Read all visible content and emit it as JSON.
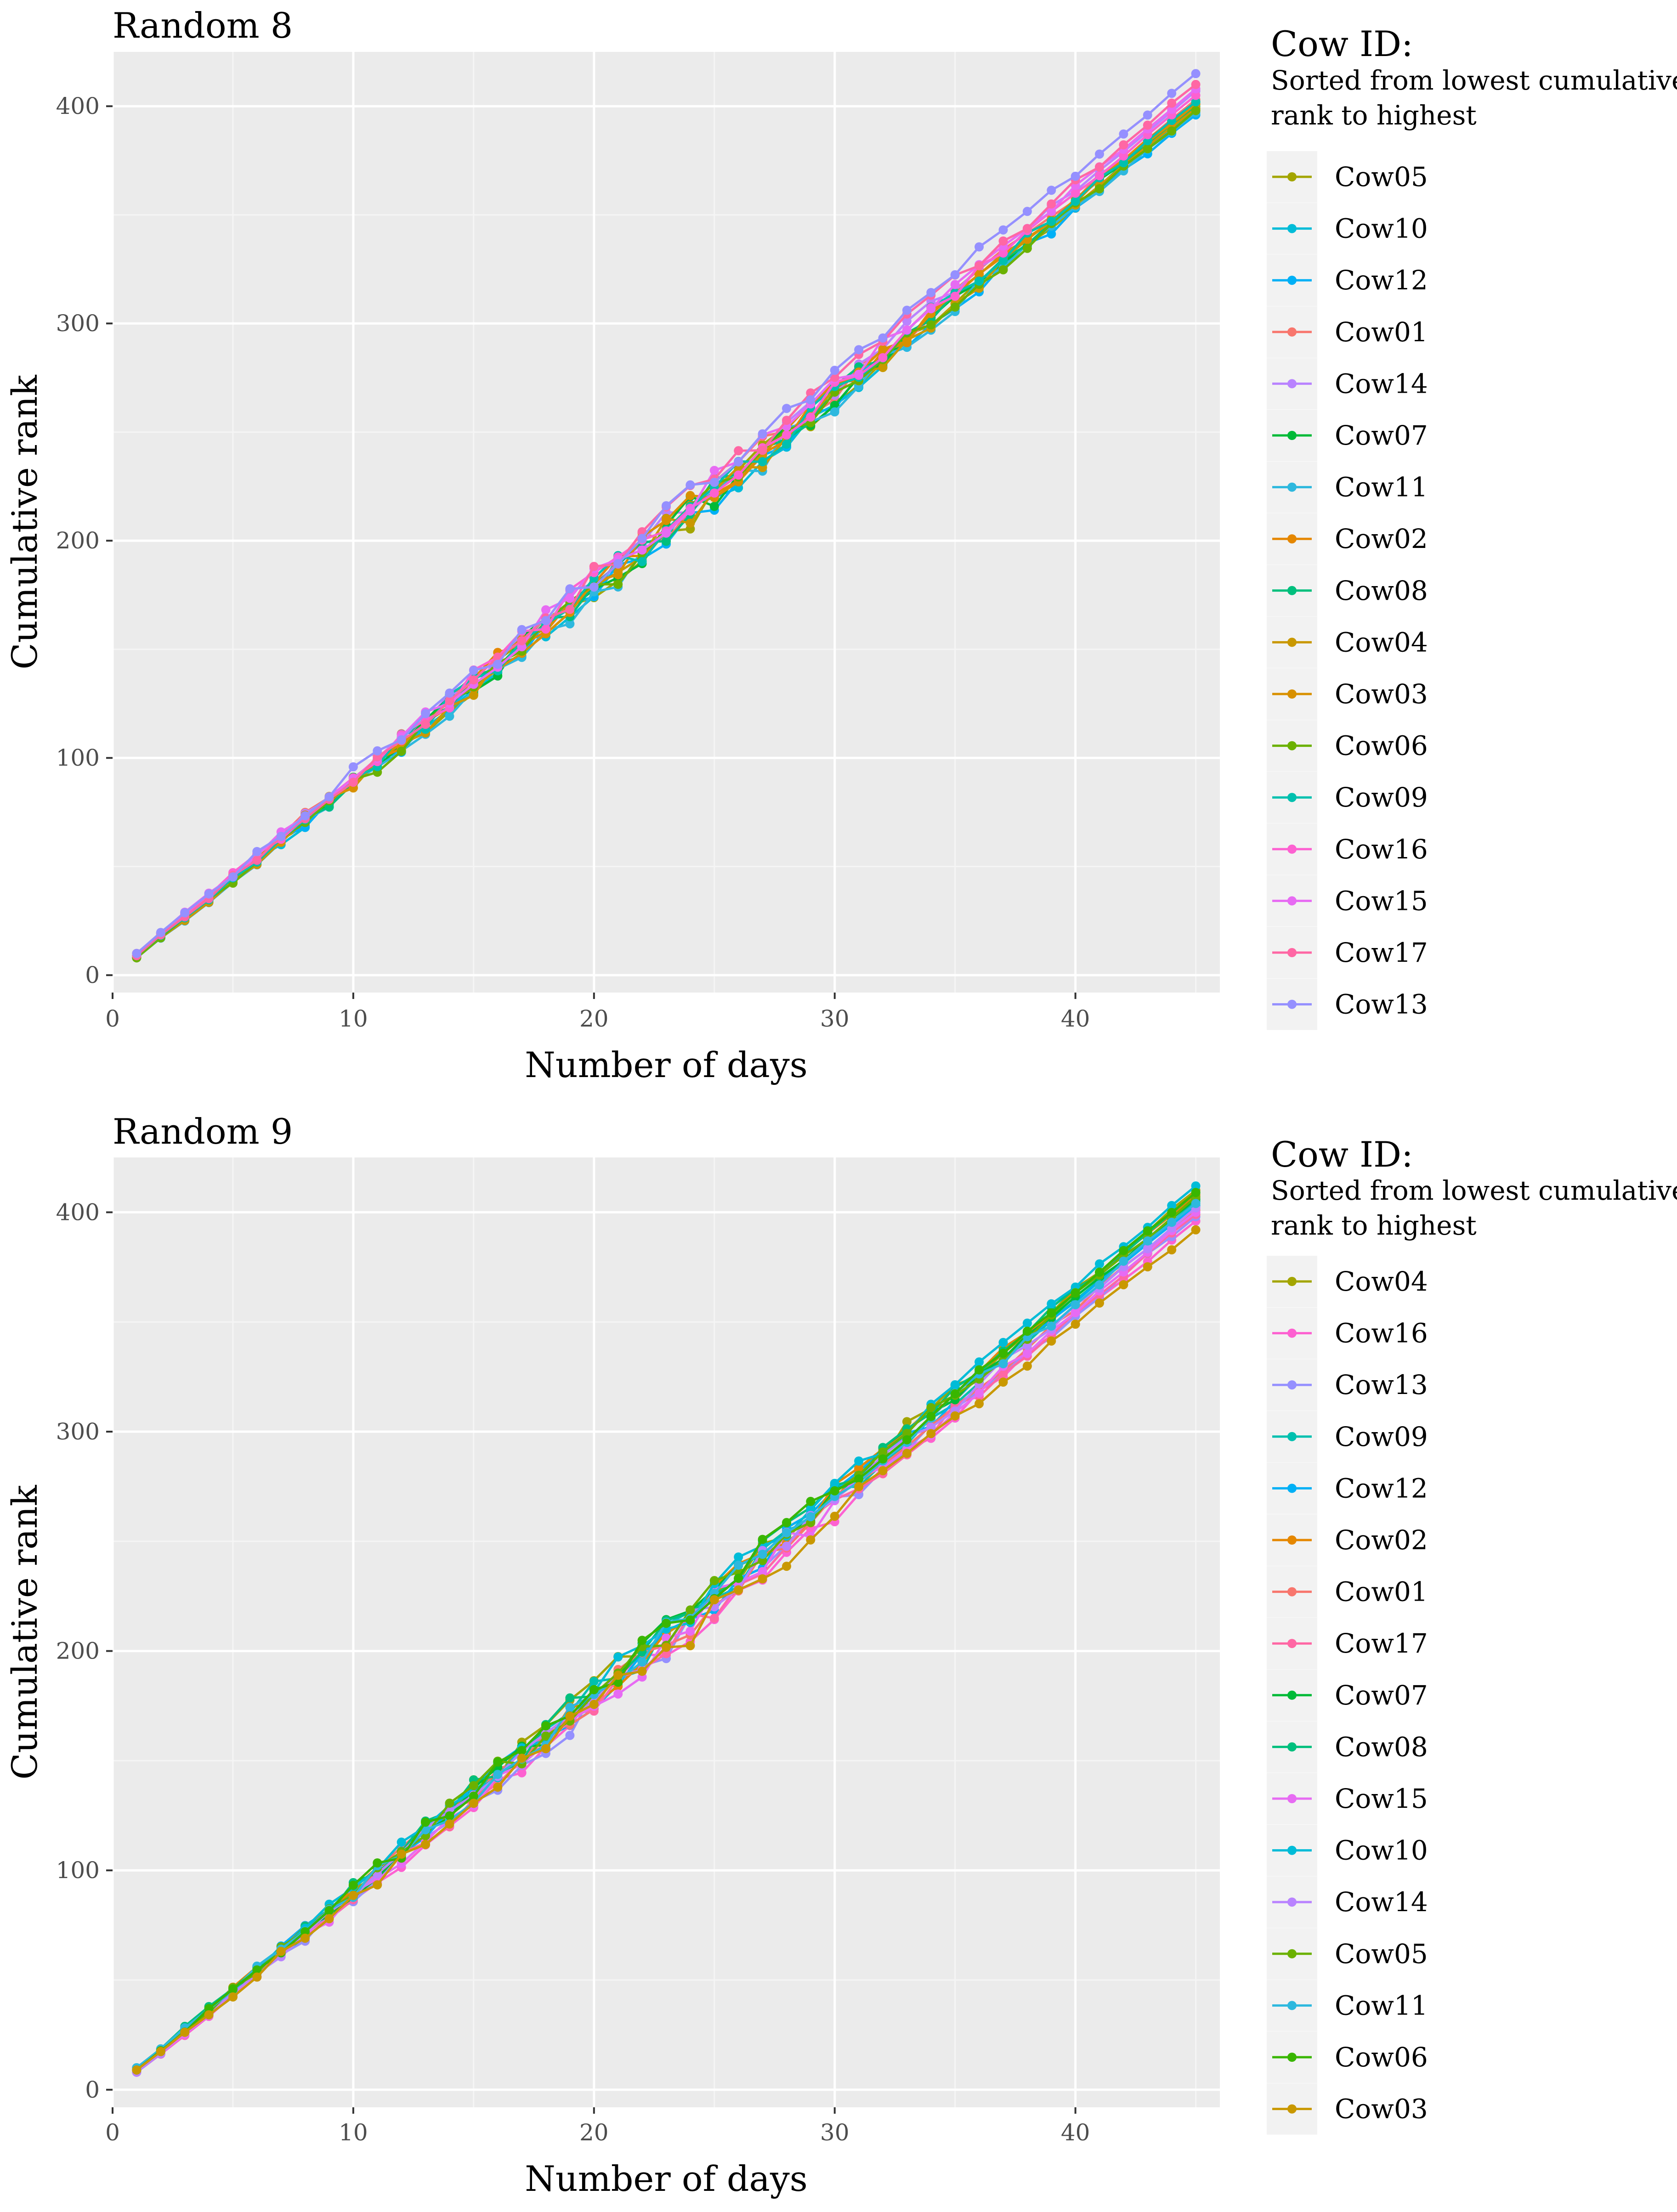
{
  "charts": [
    {
      "title": "Random 8",
      "xlabel": "Number of days",
      "ylabel": "Cumulative rank",
      "legend_title": "Cow ID:",
      "legend_subtitle_line1": "Sorted from lowest cumulative",
      "legend_subtitle_line2": "rank to highest",
      "legend_order": [
        "Cow05",
        "Cow10",
        "Cow12",
        "Cow01",
        "Cow14",
        "Cow07",
        "Cow11",
        "Cow02",
        "Cow08",
        "Cow04",
        "Cow03",
        "Cow06",
        "Cow09",
        "Cow16",
        "Cow15",
        "Cow17",
        "Cow13"
      ],
      "x_ticks": [
        "0",
        "10",
        "20",
        "30",
        "40"
      ],
      "y_ticks": [
        "0",
        "100",
        "200",
        "300",
        "400"
      ]
    },
    {
      "title": "Random 9",
      "xlabel": "Number of days",
      "ylabel": "Cumulative rank",
      "legend_title": "Cow ID:",
      "legend_subtitle_line1": "Sorted from lowest cumulative",
      "legend_subtitle_line2": "rank to highest",
      "legend_order": [
        "Cow04",
        "Cow16",
        "Cow13",
        "Cow09",
        "Cow12",
        "Cow02",
        "Cow01",
        "Cow17",
        "Cow07",
        "Cow08",
        "Cow15",
        "Cow10",
        "Cow14",
        "Cow05",
        "Cow11",
        "Cow06",
        "Cow03"
      ],
      "x_ticks": [
        "0",
        "10",
        "20",
        "30",
        "40"
      ],
      "y_ticks": [
        "0",
        "100",
        "200",
        "300",
        "400"
      ]
    }
  ],
  "colors": {
    "Cow01": "#F8766D",
    "Cow02": "#E58700",
    "Cow03": "#C99800",
    "Cow04": "#A3A500",
    "Cow05": "#6BB100",
    "Cow06": "#00BA38",
    "Cow07": "#00BF7D",
    "Cow08": "#00C0AF",
    "Cow09": "#00BCD8",
    "Cow10": "#00B0F6",
    "Cow11": "#619CFF",
    "Cow12": "#B983FF",
    "Cow13": "#E76BF3",
    "Cow14": "#FD61D1",
    "Cow15": "#FF67A4",
    "Cow16": "#2EB8DE",
    "Cow17": "#9FA0FF",
    "panel_bg": "#EBEBEB",
    "grid_major": "#FFFFFF",
    "legend_key_bg": "#F2F2F2"
  },
  "chart_data": [
    {
      "type": "line",
      "title": "Random 8",
      "xlabel": "Number of days",
      "ylabel": "Cumulative rank",
      "xlim": [
        0,
        46
      ],
      "ylim": [
        -8,
        425
      ],
      "grid": true,
      "legend_position": "right",
      "x_days": [
        1,
        45
      ],
      "series": [
        {
          "name": "Cow05",
          "color": "#A3A500",
          "y1": 9,
          "y45": 398
        },
        {
          "name": "Cow10",
          "color": "#00BCD8",
          "y1": 8,
          "y45": 399
        },
        {
          "name": "Cow12",
          "color": "#00B0F6",
          "y1": 9,
          "y45": 396
        },
        {
          "name": "Cow01",
          "color": "#F8766D",
          "y1": 10,
          "y45": 403
        },
        {
          "name": "Cow14",
          "color": "#B983FF",
          "y1": 9,
          "y45": 407
        },
        {
          "name": "Cow07",
          "color": "#00BA38",
          "y1": 8,
          "y45": 401
        },
        {
          "name": "Cow11",
          "color": "#2EB8DE",
          "y1": 8,
          "y45": 397
        },
        {
          "name": "Cow02",
          "color": "#E58700",
          "y1": 10,
          "y45": 402
        },
        {
          "name": "Cow08",
          "color": "#00BF7D",
          "y1": 9,
          "y45": 400
        },
        {
          "name": "Cow04",
          "color": "#C99800",
          "y1": 8,
          "y45": 399
        },
        {
          "name": "Cow03",
          "color": "#D89000",
          "y1": 9,
          "y45": 401
        },
        {
          "name": "Cow06",
          "color": "#6BB100",
          "y1": 8,
          "y45": 398
        },
        {
          "name": "Cow09",
          "color": "#00C0AF",
          "y1": 9,
          "y45": 402
        },
        {
          "name": "Cow16",
          "color": "#FD61D1",
          "y1": 10,
          "y45": 405
        },
        {
          "name": "Cow15",
          "color": "#E76BF3",
          "y1": 10,
          "y45": 408
        },
        {
          "name": "Cow17",
          "color": "#FF67A4",
          "y1": 9,
          "y45": 410
        },
        {
          "name": "Cow13",
          "color": "#9590FF",
          "y1": 10,
          "y45": 415
        }
      ]
    },
    {
      "type": "line",
      "title": "Random 9",
      "xlabel": "Number of days",
      "ylabel": "Cumulative rank",
      "xlim": [
        0,
        46
      ],
      "ylim": [
        -8,
        425
      ],
      "grid": true,
      "legend_position": "right",
      "x_days": [
        1,
        45
      ],
      "series": [
        {
          "name": "Cow04",
          "color": "#A3A500",
          "y1": 9,
          "y45": 410
        },
        {
          "name": "Cow16",
          "color": "#FD61D1",
          "y1": 8,
          "y45": 396
        },
        {
          "name": "Cow13",
          "color": "#9590FF",
          "y1": 8,
          "y45": 398
        },
        {
          "name": "Cow09",
          "color": "#00C0AF",
          "y1": 9,
          "y45": 405
        },
        {
          "name": "Cow12",
          "color": "#00B0F6",
          "y1": 10,
          "y45": 403
        },
        {
          "name": "Cow02",
          "color": "#E58700",
          "y1": 9,
          "y45": 408
        },
        {
          "name": "Cow01",
          "color": "#F8766D",
          "y1": 9,
          "y45": 401
        },
        {
          "name": "Cow17",
          "color": "#FF67A4",
          "y1": 8,
          "y45": 399
        },
        {
          "name": "Cow07",
          "color": "#00BA38",
          "y1": 9,
          "y45": 406
        },
        {
          "name": "Cow08",
          "color": "#00BF7D",
          "y1": 10,
          "y45": 409
        },
        {
          "name": "Cow15",
          "color": "#E76BF3",
          "y1": 8,
          "y45": 400
        },
        {
          "name": "Cow10",
          "color": "#00BCD8",
          "y1": 9,
          "y45": 412
        },
        {
          "name": "Cow14",
          "color": "#B983FF",
          "y1": 8,
          "y45": 402
        },
        {
          "name": "Cow05",
          "color": "#6BB100",
          "y1": 9,
          "y45": 407
        },
        {
          "name": "Cow11",
          "color": "#2EB8DE",
          "y1": 10,
          "y45": 404
        },
        {
          "name": "Cow06",
          "color": "#39B600",
          "y1": 9,
          "y45": 409
        },
        {
          "name": "Cow03",
          "color": "#C99800",
          "y1": 9,
          "y45": 392
        }
      ]
    }
  ]
}
